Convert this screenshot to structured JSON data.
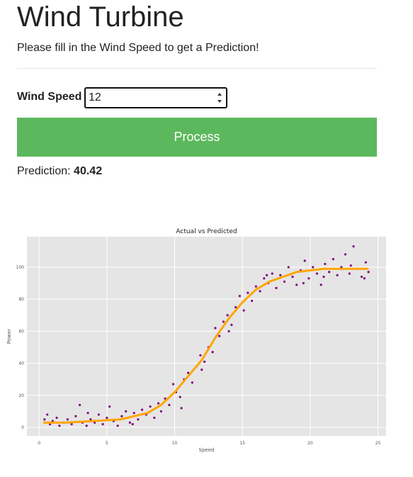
{
  "header": {
    "title": "Wind Turbine",
    "subtitle": "Please fill in the Wind Speed to get a Prediction!"
  },
  "form": {
    "label": "Wind Speed",
    "input_value": "12",
    "button": "Process"
  },
  "result": {
    "label": "Prediction:",
    "value": 40.42
  },
  "chart_data": {
    "type": "scatter",
    "title": "Actual vs Predicted",
    "x_label": "Speed",
    "y_label": "Power",
    "xlim": [
      -0.9,
      25.6
    ],
    "ylim": [
      -5.3,
      119
    ],
    "xticks": [
      0,
      5,
      10,
      15,
      20,
      25
    ],
    "yticks": [
      0,
      20,
      40,
      60,
      80,
      100
    ],
    "grid": true,
    "series": [
      {
        "color": "#800080",
        "x": [
          0.4,
          0.6,
          0.8,
          1.0,
          1.3,
          1.5,
          1.8,
          2.1,
          2.4,
          2.7,
          3.0,
          3.2,
          3.5,
          3.8,
          4.1,
          4.4,
          4.7,
          5.0,
          5.2,
          5.5,
          5.8,
          6.1,
          6.4,
          6.7,
          7.0,
          7.3,
          7.6,
          7.9,
          8.2,
          8.5,
          8.8,
          9.0,
          9.3,
          9.6,
          9.9,
          10.1,
          10.4,
          10.7,
          11.0,
          11.3,
          11.6,
          11.9,
          12.2,
          12.5,
          12.8,
          13.0,
          13.3,
          13.6,
          13.9,
          14.2,
          14.5,
          14.8,
          15.1,
          15.4,
          15.7,
          16.0,
          16.3,
          16.6,
          16.9,
          17.2,
          17.5,
          17.8,
          18.1,
          18.4,
          18.7,
          19.0,
          19.3,
          19.6,
          19.9,
          20.2,
          20.5,
          20.8,
          21.1,
          21.4,
          21.7,
          22.0,
          22.3,
          22.6,
          22.9,
          23.2,
          23.5,
          23.8,
          24.1,
          24.3,
          3.6,
          6.9,
          10.5,
          12.0,
          14.0,
          16.8,
          19.5,
          21.0,
          23.0,
          24.0
        ],
        "values": [
          5,
          8,
          2,
          4,
          6,
          1,
          3,
          5,
          2,
          7,
          14,
          3,
          1,
          5,
          3,
          8,
          2,
          6,
          13,
          4,
          1,
          7,
          10,
          3,
          9,
          5,
          11,
          8,
          13,
          6,
          15,
          10,
          18,
          14,
          27,
          22,
          19,
          30,
          34,
          28,
          38,
          45,
          41,
          50,
          47,
          62,
          57,
          66,
          70,
          64,
          75,
          82,
          73,
          84,
          79,
          88,
          85,
          93,
          90,
          96,
          87,
          95,
          91,
          100,
          94,
          89,
          98,
          104,
          93,
          100,
          96,
          89,
          102,
          97,
          105,
          95,
          100,
          108,
          96,
          113,
          99,
          94,
          103,
          97,
          9,
          2,
          12,
          36,
          60,
          95,
          90,
          94,
          101,
          93
        ]
      },
      {
        "color": "#ffa500",
        "line": true,
        "x": [
          0.3,
          2,
          4,
          6,
          7,
          8,
          9,
          10,
          11,
          12,
          13,
          14,
          15,
          16,
          17,
          18,
          19,
          20,
          21,
          22,
          23,
          24.3
        ],
        "values": [
          3,
          3,
          4,
          5,
          7,
          9,
          14,
          22,
          32,
          42,
          56,
          68,
          78,
          86,
          91,
          94,
          97,
          98,
          99,
          99,
          99,
          99
        ]
      }
    ]
  }
}
